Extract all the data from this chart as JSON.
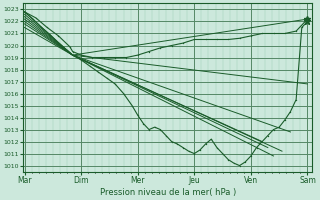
{
  "xlabel": "Pression niveau de la mer( hPa )",
  "bg_color": "#cce8dc",
  "grid_color": "#99ccb3",
  "line_color": "#1a5c2a",
  "ylim": [
    1009.5,
    1023.5
  ],
  "yticks": [
    1010,
    1011,
    1012,
    1013,
    1014,
    1015,
    1016,
    1017,
    1018,
    1019,
    1020,
    1021,
    1022,
    1023
  ],
  "x_day_labels": [
    "Mar",
    "Dim",
    "Mer",
    "Jeu",
    "Ven",
    "Sam"
  ],
  "x_day_positions": [
    0.0,
    1.0,
    2.0,
    3.0,
    4.0,
    5.0
  ],
  "xlim": [
    -0.02,
    5.08
  ],
  "straight_lines": [
    {
      "x": [
        0.0,
        0.85,
        5.0
      ],
      "y": [
        1022.8,
        1019.2,
        1022.2
      ]
    },
    {
      "x": [
        0.0,
        0.85,
        5.0
      ],
      "y": [
        1022.6,
        1019.2,
        1016.8
      ]
    },
    {
      "x": [
        0.0,
        0.85,
        4.7
      ],
      "y": [
        1022.4,
        1019.2,
        1012.8
      ]
    },
    {
      "x": [
        0.0,
        0.85,
        4.55
      ],
      "y": [
        1022.2,
        1019.2,
        1011.2
      ]
    },
    {
      "x": [
        0.0,
        0.85,
        4.4
      ],
      "y": [
        1022.0,
        1019.2,
        1010.8
      ]
    },
    {
      "x": [
        0.0,
        0.85,
        4.3
      ],
      "y": [
        1021.8,
        1019.2,
        1011.5
      ]
    },
    {
      "x": [
        0.0,
        0.85,
        4.2
      ],
      "y": [
        1021.5,
        1019.2,
        1012.0
      ]
    }
  ],
  "dotted_line_main": {
    "x": [
      0.0,
      0.15,
      0.3,
      0.45,
      0.6,
      0.75,
      0.85,
      1.0,
      1.15,
      1.3,
      1.45,
      1.6,
      1.75,
      1.9,
      2.0,
      2.1,
      2.2,
      2.3,
      2.4,
      2.5,
      2.6,
      2.7,
      2.8,
      2.9,
      3.0,
      3.1,
      3.2,
      3.3,
      3.4,
      3.5,
      3.6,
      3.7,
      3.8,
      3.9,
      4.0,
      4.1,
      4.2,
      4.3,
      4.4,
      4.5,
      4.6,
      4.7,
      4.8,
      4.9,
      5.0
    ],
    "y": [
      1022.8,
      1022.2,
      1021.5,
      1020.9,
      1020.2,
      1019.6,
      1019.2,
      1018.8,
      1018.3,
      1017.8,
      1017.3,
      1016.8,
      1016.0,
      1015.0,
      1014.2,
      1013.5,
      1013.0,
      1013.2,
      1013.0,
      1012.5,
      1012.0,
      1011.8,
      1011.5,
      1011.2,
      1011.0,
      1011.3,
      1011.8,
      1012.2,
      1011.5,
      1011.0,
      1010.5,
      1010.2,
      1010.0,
      1010.3,
      1010.8,
      1011.5,
      1012.0,
      1012.5,
      1013.0,
      1013.2,
      1013.8,
      1014.5,
      1015.5,
      1021.5,
      1022.0
    ]
  },
  "dotted_line_upper": {
    "x": [
      0.0,
      0.2,
      0.4,
      0.6,
      0.8,
      0.85,
      1.0,
      1.2,
      1.4,
      1.6,
      1.8,
      2.0,
      2.2,
      2.4,
      2.6,
      2.8,
      3.0,
      3.2,
      3.4,
      3.6,
      3.8,
      4.0,
      4.2,
      4.4,
      4.6,
      4.8,
      5.0
    ],
    "y": [
      1022.8,
      1022.3,
      1021.5,
      1020.8,
      1019.9,
      1019.5,
      1019.2,
      1019.0,
      1019.0,
      1019.0,
      1019.0,
      1019.2,
      1019.5,
      1019.8,
      1020.0,
      1020.2,
      1020.5,
      1020.5,
      1020.5,
      1020.5,
      1020.6,
      1020.8,
      1021.0,
      1021.0,
      1021.0,
      1021.2,
      1022.2
    ]
  },
  "star_x": 5.0,
  "star_y": 1022.0
}
